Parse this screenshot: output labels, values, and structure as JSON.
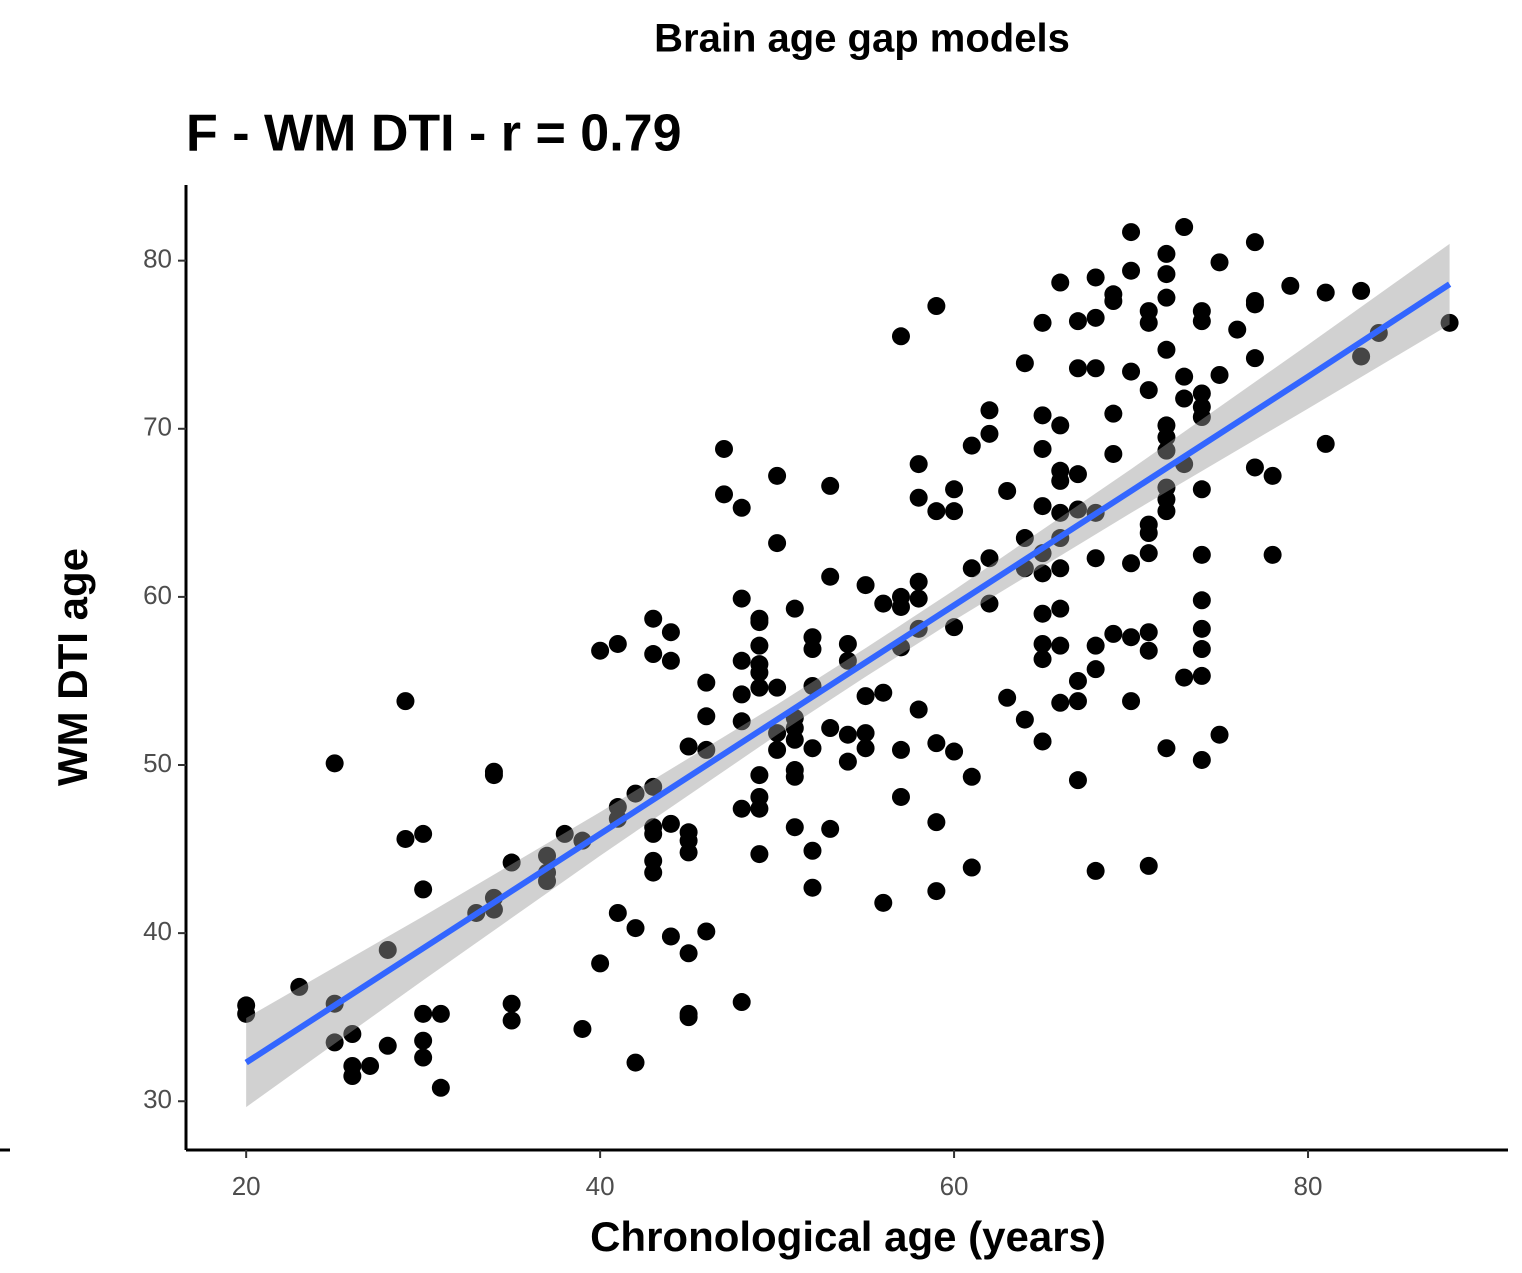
{
  "chart_data": {
    "type": "scatter",
    "title": "Brain age gap models",
    "subtitle": "F - WM DTI - r = 0.79",
    "x_label": "Chronological age (years)",
    "y_label": "WM DTI age",
    "xlim": [
      16.6,
      91.3
    ],
    "ylim": [
      27.1,
      84.5
    ],
    "xticks": [
      20,
      40,
      60,
      80
    ],
    "yticks": [
      30,
      40,
      50,
      60,
      70,
      80
    ],
    "grid": false,
    "series": [
      {
        "color": "#000000",
        "x": [
          20,
          20,
          23,
          25,
          25,
          25,
          26,
          26,
          26,
          27,
          28,
          28,
          29,
          29,
          30,
          30,
          30,
          30,
          30,
          31,
          31,
          33,
          34,
          34,
          34,
          34,
          35,
          35,
          35,
          37,
          37,
          37,
          38,
          39,
          39,
          40,
          40,
          41,
          41,
          41,
          41,
          42,
          42,
          42,
          43,
          43,
          43,
          43,
          43,
          43,
          43,
          44,
          44,
          44,
          44,
          45,
          45,
          45,
          45,
          45,
          45,
          45,
          46,
          46,
          46,
          46,
          47,
          47,
          48,
          48,
          48,
          48,
          48,
          48,
          48,
          49,
          49,
          49,
          49,
          49,
          49,
          49,
          49,
          49,
          49,
          50,
          50,
          50,
          50,
          50,
          51,
          51,
          51,
          51,
          51,
          51,
          51,
          52,
          52,
          52,
          52,
          52,
          52,
          53,
          53,
          53,
          53,
          54,
          54,
          54,
          54,
          55,
          55,
          55,
          55,
          56,
          56,
          56,
          57,
          57,
          57,
          57,
          57,
          57,
          58,
          58,
          58,
          58,
          58,
          58,
          59,
          59,
          59,
          59,
          59,
          60,
          60,
          60,
          60,
          61,
          61,
          61,
          61,
          62,
          62,
          62,
          62,
          63,
          63,
          64,
          64,
          64,
          64,
          65,
          65,
          65,
          65,
          65,
          65,
          65,
          65,
          65,
          65,
          66,
          66,
          66,
          66,
          66,
          66,
          66,
          66,
          66,
          66,
          67,
          67,
          67,
          67,
          67,
          67,
          67,
          68,
          68,
          68,
          68,
          68,
          68,
          68,
          68,
          69,
          69,
          69,
          69,
          69,
          70,
          70,
          70,
          70,
          70,
          70,
          71,
          71,
          71,
          71,
          71,
          71,
          71,
          71,
          71,
          72,
          72,
          72,
          72,
          72,
          72,
          72,
          72,
          72,
          72,
          72,
          73,
          73,
          73,
          73,
          73,
          74,
          74,
          74,
          74,
          74,
          74,
          74,
          74,
          74,
          74,
          74,
          74,
          75,
          75,
          75,
          76,
          77,
          77,
          77,
          77,
          77,
          78,
          78,
          79,
          81,
          81,
          83,
          83,
          84,
          88
        ],
        "values": [
          35.7,
          35.2,
          36.8,
          35.8,
          33.5,
          50.1,
          34.0,
          32.1,
          31.5,
          32.1,
          33.3,
          39.0,
          53.8,
          45.6,
          45.9,
          42.6,
          35.2,
          33.6,
          32.6,
          35.2,
          30.8,
          41.2,
          42.1,
          41.4,
          49.6,
          49.4,
          44.2,
          35.8,
          34.8,
          44.6,
          43.6,
          43.1,
          45.9,
          45.5,
          34.3,
          56.8,
          38.2,
          57.2,
          47.5,
          46.8,
          41.2,
          40.3,
          32.3,
          48.3,
          58.7,
          56.6,
          48.7,
          46.3,
          45.9,
          44.3,
          43.6,
          57.9,
          56.2,
          46.5,
          39.8,
          51.1,
          46.0,
          45.5,
          44.8,
          38.8,
          35.2,
          35.0,
          54.9,
          52.9,
          50.9,
          40.1,
          68.8,
          66.1,
          65.3,
          59.9,
          56.2,
          54.2,
          52.6,
          47.4,
          35.9,
          58.7,
          58.5,
          57.1,
          56.0,
          55.5,
          54.6,
          49.4,
          48.1,
          47.4,
          44.7,
          67.2,
          63.2,
          54.6,
          51.9,
          50.9,
          59.3,
          52.8,
          52.2,
          51.5,
          49.7,
          49.3,
          46.3,
          57.6,
          56.9,
          54.7,
          51.0,
          44.9,
          42.7,
          66.6,
          61.2,
          52.2,
          46.2,
          57.2,
          56.2,
          51.8,
          50.2,
          60.7,
          54.1,
          51.9,
          51.0,
          59.6,
          54.3,
          41.8,
          75.5,
          60.0,
          59.4,
          57.0,
          50.9,
          48.1,
          67.9,
          65.9,
          60.9,
          59.9,
          58.1,
          53.3,
          77.3,
          65.1,
          51.3,
          46.6,
          42.5,
          66.4,
          65.1,
          58.2,
          50.8,
          69.0,
          61.7,
          49.3,
          43.9,
          71.1,
          69.7,
          62.3,
          59.6,
          66.3,
          54.0,
          73.9,
          63.5,
          61.7,
          52.7,
          76.3,
          70.8,
          68.8,
          65.4,
          62.6,
          61.4,
          59.0,
          57.2,
          56.3,
          51.4,
          78.7,
          70.2,
          67.5,
          66.9,
          65.0,
          63.5,
          61.7,
          59.3,
          57.1,
          53.7,
          76.4,
          73.6,
          67.3,
          65.2,
          55.0,
          53.8,
          49.1,
          79.0,
          76.6,
          73.6,
          65.0,
          62.3,
          57.1,
          55.7,
          43.7,
          78.0,
          77.6,
          70.9,
          68.5,
          57.8,
          81.7,
          79.4,
          73.4,
          62.0,
          57.6,
          53.8,
          77.0,
          76.3,
          72.3,
          64.3,
          63.8,
          62.6,
          57.9,
          56.8,
          44.0,
          80.4,
          79.2,
          77.8,
          74.7,
          70.2,
          69.5,
          68.7,
          66.5,
          65.8,
          65.1,
          51.0,
          82.0,
          73.1,
          71.8,
          67.9,
          55.2,
          77.0,
          76.4,
          72.1,
          71.3,
          70.7,
          66.4,
          62.5,
          59.8,
          58.1,
          56.9,
          55.3,
          50.3,
          79.9,
          73.2,
          51.8,
          75.9,
          81.1,
          77.6,
          77.4,
          74.2,
          67.7,
          67.2,
          62.5,
          78.5,
          78.1,
          69.1,
          78.2,
          74.3,
          75.7,
          76.3
        ]
      }
    ],
    "fit": {
      "color": "#3366ff",
      "band_color": "#999999",
      "x": [
        20,
        30,
        40,
        50,
        55,
        60,
        70,
        80,
        88
      ],
      "values": [
        32.3,
        39.1,
        45.9,
        52.7,
        56.1,
        59.5,
        66.3,
        73.1,
        78.6
      ],
      "lower": [
        29.65,
        37.2,
        44.6,
        51.8,
        55.25,
        58.6,
        65.0,
        71.2,
        76.2
      ],
      "upper": [
        34.95,
        41.0,
        47.2,
        53.6,
        56.95,
        60.4,
        67.6,
        75.0,
        81.0
      ]
    }
  }
}
